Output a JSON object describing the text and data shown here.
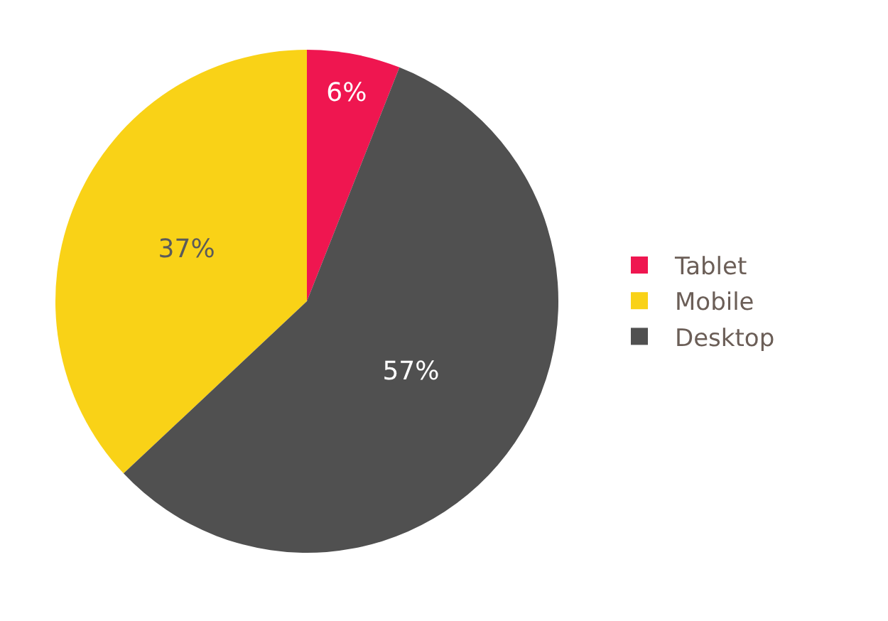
{
  "chart_data": {
    "type": "pie",
    "categories": [
      "Tablet",
      "Mobile",
      "Desktop"
    ],
    "values": [
      6,
      37,
      57
    ],
    "colors": [
      "#ef1650",
      "#f9d217",
      "#505050"
    ],
    "value_labels": [
      "6%",
      "37%",
      "57%"
    ],
    "legend": "right"
  }
}
